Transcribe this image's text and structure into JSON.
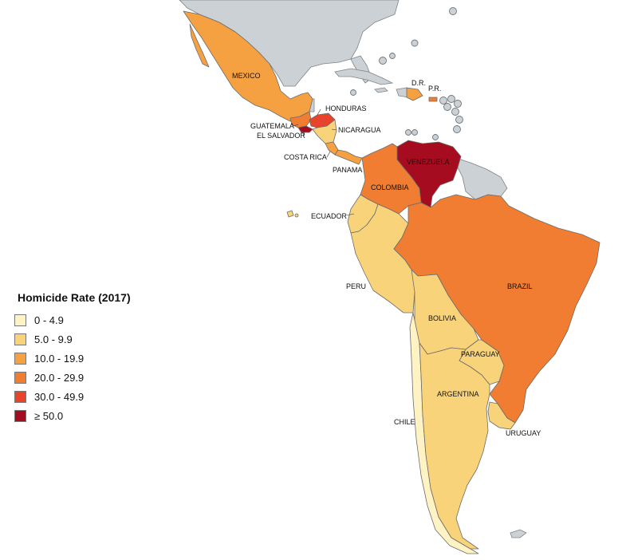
{
  "legend": {
    "title": "Homicide Rate (2017)",
    "classes": [
      {
        "label": "0 - 4.9",
        "color": "#fff3c4"
      },
      {
        "label": "5.0 - 9.9",
        "color": "#f9d37a"
      },
      {
        "label": "10.0 - 19.9",
        "color": "#f5a141"
      },
      {
        "label": "20.0 - 29.9",
        "color": "#f07d32"
      },
      {
        "label": "30.0 - 49.9",
        "color": "#e8432b"
      },
      {
        "label": "≥ 50.0",
        "color": "#a50c1f"
      }
    ]
  },
  "no_data_color": "#cbd1d5",
  "countries": {
    "mexico": {
      "label": "MEXICO",
      "class": 2
    },
    "guatemala": {
      "label": "GUATEMALA",
      "class": 3
    },
    "el_salvador": {
      "label": "EL SALVADOR",
      "class": 5
    },
    "honduras": {
      "label": "HONDURAS",
      "class": 4
    },
    "nicaragua": {
      "label": "NICARAGUA",
      "class": 1
    },
    "costa_rica": {
      "label": "COSTA RICA",
      "class": 2
    },
    "panama": {
      "label": "PANAMA",
      "class": 2
    },
    "dominican_republic": {
      "label": "D.R.",
      "class": 2
    },
    "puerto_rico": {
      "label": "P.R.",
      "class": 3
    },
    "venezuela": {
      "label": "VENEZUELA",
      "class": 5
    },
    "colombia": {
      "label": "COLOMBIA",
      "class": 3
    },
    "ecuador": {
      "label": "ECUADOR",
      "class": 1
    },
    "peru": {
      "label": "PERU",
      "class": 1
    },
    "brazil": {
      "label": "BRAZIL",
      "class": 3
    },
    "bolivia": {
      "label": "BOLIVIA",
      "class": 1
    },
    "paraguay": {
      "label": "PARAGUAY",
      "class": 1
    },
    "chile": {
      "label": "CHILE",
      "class": 0
    },
    "argentina": {
      "label": "ARGENTINA",
      "class": 1
    },
    "uruguay": {
      "label": "URUGUAY",
      "class": 1
    }
  }
}
